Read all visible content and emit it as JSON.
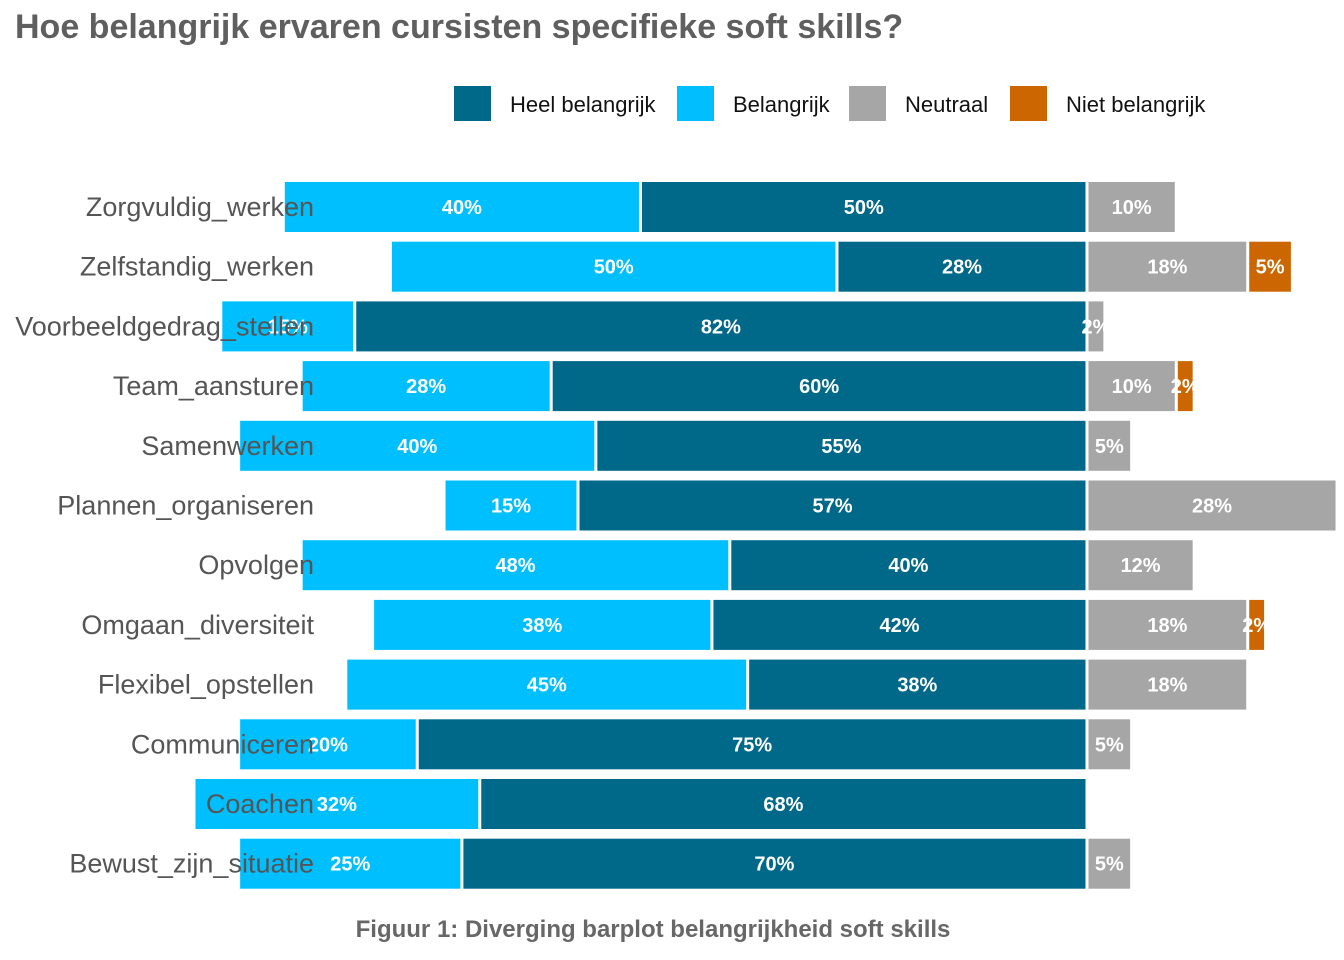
{
  "title": "Hoe belangrijk ervaren cursisten specifieke soft skills?",
  "caption": "Figuur 1: Diverging barplot belangrijkheid soft skills",
  "chart_data": {
    "type": "bar",
    "orientation": "horizontal",
    "stacking": "diverging",
    "categories": [
      "Zorgvuldig_werken",
      "Zelfstandig_werken",
      "Voorbeeldgedrag_stellen",
      "Team_aansturen",
      "Samenwerken",
      "Plannen_organiseren",
      "Opvolgen",
      "Omgaan_diversiteit",
      "Flexibel_opstellen",
      "Communiceren",
      "Coachen",
      "Bewust_zijn_situatie"
    ],
    "series": [
      {
        "name": "Heel belangrijk",
        "color": "#006889",
        "side": "left",
        "values": [
          50,
          28,
          82,
          60,
          55,
          57,
          40,
          42,
          38,
          75,
          68,
          70
        ],
        "labels": [
          "50%",
          "28%",
          "82%",
          "60%",
          "55%",
          "57%",
          "40%",
          "42%",
          "38%",
          "75%",
          "68%",
          "70%"
        ]
      },
      {
        "name": "Belangrijk",
        "color": "#00BFFF",
        "side": "left",
        "values": [
          40,
          50,
          15,
          28,
          40,
          15,
          48,
          38,
          45,
          20,
          32,
          25
        ],
        "labels": [
          "40%",
          "50%",
          "15%",
          "28%",
          "40%",
          "15%",
          "48%",
          "38%",
          "45%",
          "20%",
          "32%",
          "25%"
        ]
      },
      {
        "name": "Neutraal",
        "color": "#A6A6A6",
        "side": "right",
        "values": [
          10,
          18,
          2,
          10,
          5,
          28,
          12,
          18,
          18,
          5,
          0,
          5
        ],
        "labels": [
          "10%",
          "18%",
          "2%",
          "10%",
          "5%",
          "28%",
          "12%",
          "18%",
          "18%",
          "5%",
          "",
          "5%"
        ]
      },
      {
        "name": "Niet belangrijk",
        "color": "#CC6600",
        "side": "right",
        "values": [
          0,
          5,
          0,
          2,
          0,
          0,
          0,
          2,
          0,
          0,
          0,
          0
        ],
        "labels": [
          "",
          "5%",
          "",
          "2%",
          "",
          "",
          "",
          "2%",
          "",
          "",
          "",
          ""
        ]
      }
    ],
    "grid": false,
    "legend_position": "top"
  }
}
